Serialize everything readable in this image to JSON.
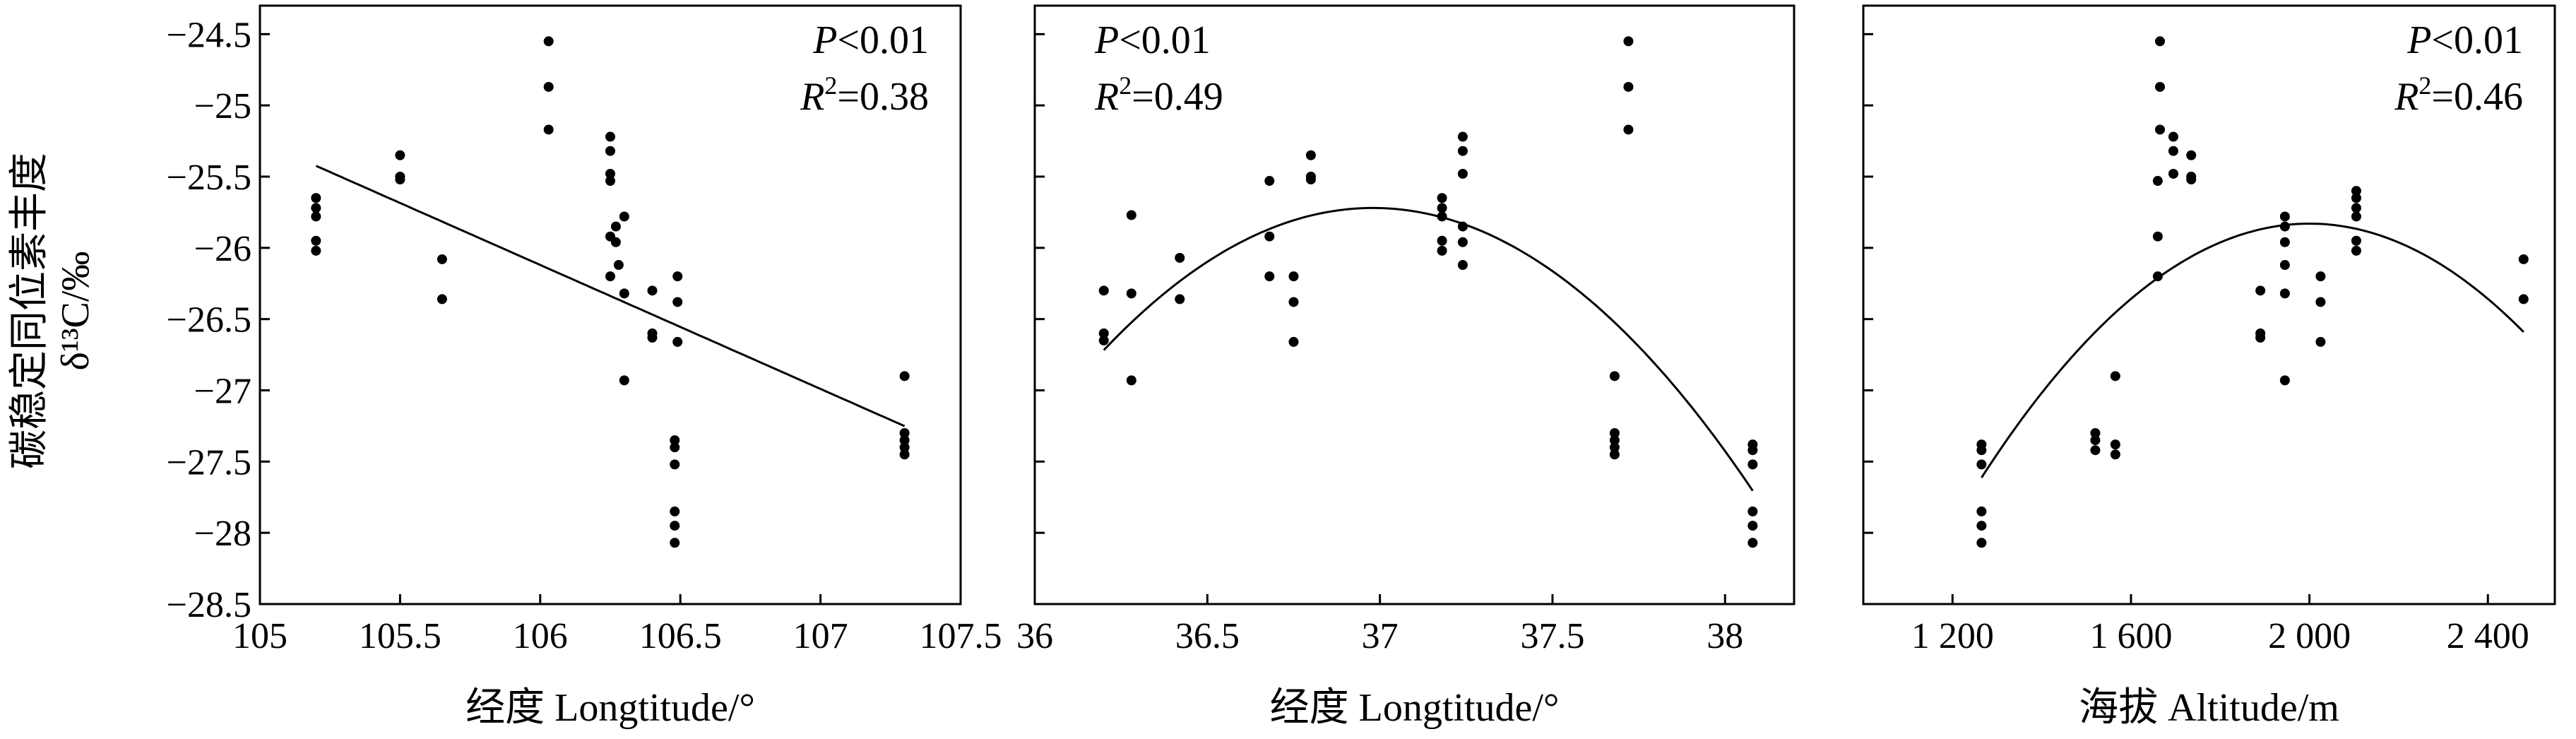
{
  "y_axis_label_cn": "碳稳定同位素丰度",
  "y_axis_label_sym": "δ¹³C/‰",
  "chart_data": [
    {
      "type": "scatter",
      "xlabel": "经度 Longtitude/°",
      "ylabel": "碳稳定同位素丰度 δ¹³C/‰",
      "xlim": [
        105,
        107.5
      ],
      "ylim": [
        -28.5,
        -24.3
      ],
      "x_ticks": [
        105,
        105.5,
        106,
        106.5,
        107,
        107.5
      ],
      "x_tick_labels": [
        "105",
        "105.5",
        "106",
        "106.5",
        "107",
        "107.5"
      ],
      "y_ticks": [
        -28.5,
        -28,
        -27.5,
        -27,
        -26.5,
        -26,
        -25.5,
        -25,
        -24.5
      ],
      "y_tick_labels": [
        "−28.5",
        "−28",
        "−27.5",
        "−27",
        "−26.5",
        "−26",
        "−25.5",
        "−25",
        "−24.5"
      ],
      "annotations": {
        "p_sym": "P",
        "p_rest": "<0.01",
        "r_sym": "R",
        "r_sup": "2",
        "r_rest": "=0.38"
      },
      "fit": {
        "kind": "linear",
        "x_range": [
          105.2,
          107.3
        ],
        "coeffs": [
          -0.87,
          66.1
        ]
      },
      "points": [
        [
          105.2,
          -25.65
        ],
        [
          105.2,
          -25.72
        ],
        [
          105.2,
          -25.78
        ],
        [
          105.2,
          -25.95
        ],
        [
          105.2,
          -26.02
        ],
        [
          105.5,
          -25.35
        ],
        [
          105.5,
          -25.5
        ],
        [
          105.5,
          -25.52
        ],
        [
          105.65,
          -26.08
        ],
        [
          105.65,
          -26.36
        ],
        [
          106.03,
          -24.55
        ],
        [
          106.03,
          -24.87
        ],
        [
          106.03,
          -25.17
        ],
        [
          106.25,
          -25.22
        ],
        [
          106.25,
          -25.32
        ],
        [
          106.25,
          -25.48
        ],
        [
          106.25,
          -25.53
        ],
        [
          106.25,
          -25.92
        ],
        [
          106.25,
          -26.2
        ],
        [
          106.27,
          -25.85
        ],
        [
          106.27,
          -25.96
        ],
        [
          106.28,
          -26.12
        ],
        [
          106.3,
          -25.78
        ],
        [
          106.3,
          -26.32
        ],
        [
          106.3,
          -26.93
        ],
        [
          106.4,
          -26.3
        ],
        [
          106.4,
          -26.6
        ],
        [
          106.4,
          -26.63
        ],
        [
          106.49,
          -26.2
        ],
        [
          106.49,
          -26.38
        ],
        [
          106.49,
          -26.66
        ],
        [
          106.48,
          -27.35
        ],
        [
          106.48,
          -27.4
        ],
        [
          106.48,
          -27.52
        ],
        [
          106.48,
          -27.85
        ],
        [
          106.48,
          -27.95
        ],
        [
          106.48,
          -28.07
        ],
        [
          107.3,
          -26.9
        ],
        [
          107.3,
          -27.3
        ],
        [
          107.3,
          -27.35
        ],
        [
          107.3,
          -27.4
        ],
        [
          107.3,
          -27.45
        ]
      ]
    },
    {
      "type": "scatter",
      "xlabel": "经度 Longtitude/°",
      "xlim": [
        36,
        38.2
      ],
      "ylim": [
        -28.5,
        -24.3
      ],
      "x_ticks": [
        36,
        36.5,
        37,
        37.5,
        38
      ],
      "x_tick_labels": [
        "36",
        "36.5",
        "37",
        "37.5",
        "38"
      ],
      "annotations": {
        "p_sym": "P",
        "p_rest": "<0.01",
        "r_sym": "R",
        "r_sup": "2",
        "r_rest": "=0.49"
      },
      "fit": {
        "kind": "quadratic",
        "x_range": [
          36.2,
          38.08
        ],
        "vertex": [
          36.98,
          -25.72
        ],
        "a": -1.64
      },
      "points": [
        [
          36.2,
          -26.3
        ],
        [
          36.2,
          -26.6
        ],
        [
          36.2,
          -26.65
        ],
        [
          36.28,
          -25.77
        ],
        [
          36.28,
          -26.32
        ],
        [
          36.28,
          -26.93
        ],
        [
          36.42,
          -26.07
        ],
        [
          36.42,
          -26.36
        ],
        [
          36.68,
          -25.53
        ],
        [
          36.68,
          -25.92
        ],
        [
          36.68,
          -26.2
        ],
        [
          36.75,
          -26.2
        ],
        [
          36.75,
          -26.38
        ],
        [
          36.75,
          -26.66
        ],
        [
          36.8,
          -25.35
        ],
        [
          36.8,
          -25.5
        ],
        [
          36.8,
          -25.52
        ],
        [
          37.18,
          -25.65
        ],
        [
          37.18,
          -25.72
        ],
        [
          37.18,
          -25.78
        ],
        [
          37.18,
          -25.95
        ],
        [
          37.18,
          -26.02
        ],
        [
          37.24,
          -25.22
        ],
        [
          37.24,
          -25.32
        ],
        [
          37.24,
          -25.48
        ],
        [
          37.24,
          -25.85
        ],
        [
          37.24,
          -25.96
        ],
        [
          37.24,
          -26.12
        ],
        [
          37.68,
          -26.9
        ],
        [
          37.68,
          -27.3
        ],
        [
          37.68,
          -27.35
        ],
        [
          37.68,
          -27.4
        ],
        [
          37.68,
          -27.45
        ],
        [
          37.72,
          -24.55
        ],
        [
          37.72,
          -24.87
        ],
        [
          37.72,
          -25.17
        ],
        [
          38.08,
          -27.38
        ],
        [
          38.08,
          -27.42
        ],
        [
          38.08,
          -27.52
        ],
        [
          38.08,
          -27.85
        ],
        [
          38.08,
          -27.95
        ],
        [
          38.08,
          -28.07
        ]
      ]
    },
    {
      "type": "scatter",
      "xlabel": "海拔 Altitude/m",
      "xlim": [
        1000,
        2550
      ],
      "ylim": [
        -28.5,
        -24.3
      ],
      "x_ticks": [
        1200,
        1600,
        2000,
        2400
      ],
      "x_tick_labels": [
        "1 200",
        "1 600",
        "2 000",
        "2 400"
      ],
      "annotations": {
        "p_sym": "P",
        "p_rest": "<0.01",
        "r_sym": "R",
        "r_sup": "2",
        "r_rest": "=0.46"
      },
      "fit": {
        "kind": "quadratic",
        "x_range": [
          1265,
          2480
        ],
        "vertex": [
          2000,
          -25.83
        ],
        "a": -3.3e-06
      },
      "points": [
        [
          1265,
          -27.38
        ],
        [
          1265,
          -27.42
        ],
        [
          1265,
          -27.52
        ],
        [
          1265,
          -27.85
        ],
        [
          1265,
          -27.95
        ],
        [
          1265,
          -28.07
        ],
        [
          1520,
          -27.3
        ],
        [
          1520,
          -27.35
        ],
        [
          1520,
          -27.42
        ],
        [
          1565,
          -26.9
        ],
        [
          1565,
          -27.38
        ],
        [
          1565,
          -27.45
        ],
        [
          1660,
          -25.53
        ],
        [
          1660,
          -25.92
        ],
        [
          1660,
          -26.2
        ],
        [
          1665,
          -24.55
        ],
        [
          1665,
          -24.87
        ],
        [
          1665,
          -25.17
        ],
        [
          1695,
          -25.22
        ],
        [
          1695,
          -25.32
        ],
        [
          1695,
          -25.48
        ],
        [
          1735,
          -25.35
        ],
        [
          1735,
          -25.5
        ],
        [
          1735,
          -25.52
        ],
        [
          1890,
          -26.3
        ],
        [
          1890,
          -26.6
        ],
        [
          1890,
          -26.63
        ],
        [
          1945,
          -25.78
        ],
        [
          1945,
          -25.85
        ],
        [
          1945,
          -25.96
        ],
        [
          1945,
          -26.12
        ],
        [
          1945,
          -26.32
        ],
        [
          1945,
          -26.93
        ],
        [
          2025,
          -26.2
        ],
        [
          2025,
          -26.38
        ],
        [
          2025,
          -26.66
        ],
        [
          2105,
          -25.65
        ],
        [
          2105,
          -25.72
        ],
        [
          2105,
          -25.78
        ],
        [
          2105,
          -25.95
        ],
        [
          2105,
          -26.02
        ],
        [
          2105,
          -25.6
        ],
        [
          2480,
          -26.08
        ],
        [
          2480,
          -26.36
        ]
      ]
    }
  ]
}
